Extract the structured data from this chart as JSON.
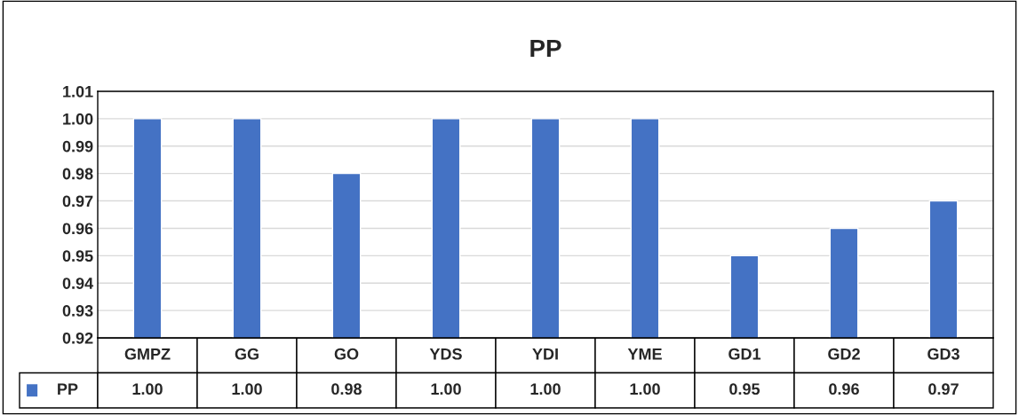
{
  "chart_data": {
    "type": "bar",
    "title": "PP",
    "categories": [
      "GMPZ",
      "GG",
      "GO",
      "YDS",
      "YDI",
      "YME",
      "GD1",
      "GD2",
      "GD3"
    ],
    "series": [
      {
        "name": "PP",
        "color": "#4472c4",
        "values": [
          1.0,
          1.0,
          0.98,
          1.0,
          1.0,
          1.0,
          0.95,
          0.96,
          0.97
        ],
        "value_labels": [
          "1.00",
          "1.00",
          "0.98",
          "1.00",
          "1.00",
          "1.00",
          "0.95",
          "0.96",
          "0.97"
        ]
      }
    ],
    "ylim": [
      0.92,
      1.01
    ],
    "yticks": [
      {
        "value": 0.92,
        "label": "0.92"
      },
      {
        "value": 0.93,
        "label": "0.93"
      },
      {
        "value": 0.94,
        "label": "0.94"
      },
      {
        "value": 0.95,
        "label": "0.95"
      },
      {
        "value": 0.96,
        "label": "0.96"
      },
      {
        "value": 0.97,
        "label": "0.97"
      },
      {
        "value": 0.98,
        "label": "0.98"
      },
      {
        "value": 0.99,
        "label": "0.99"
      },
      {
        "value": 1.0,
        "label": "1.00"
      },
      {
        "value": 1.01,
        "label": "1.01"
      }
    ],
    "grid": "y",
    "legend": "bottom",
    "data_labels": true
  }
}
